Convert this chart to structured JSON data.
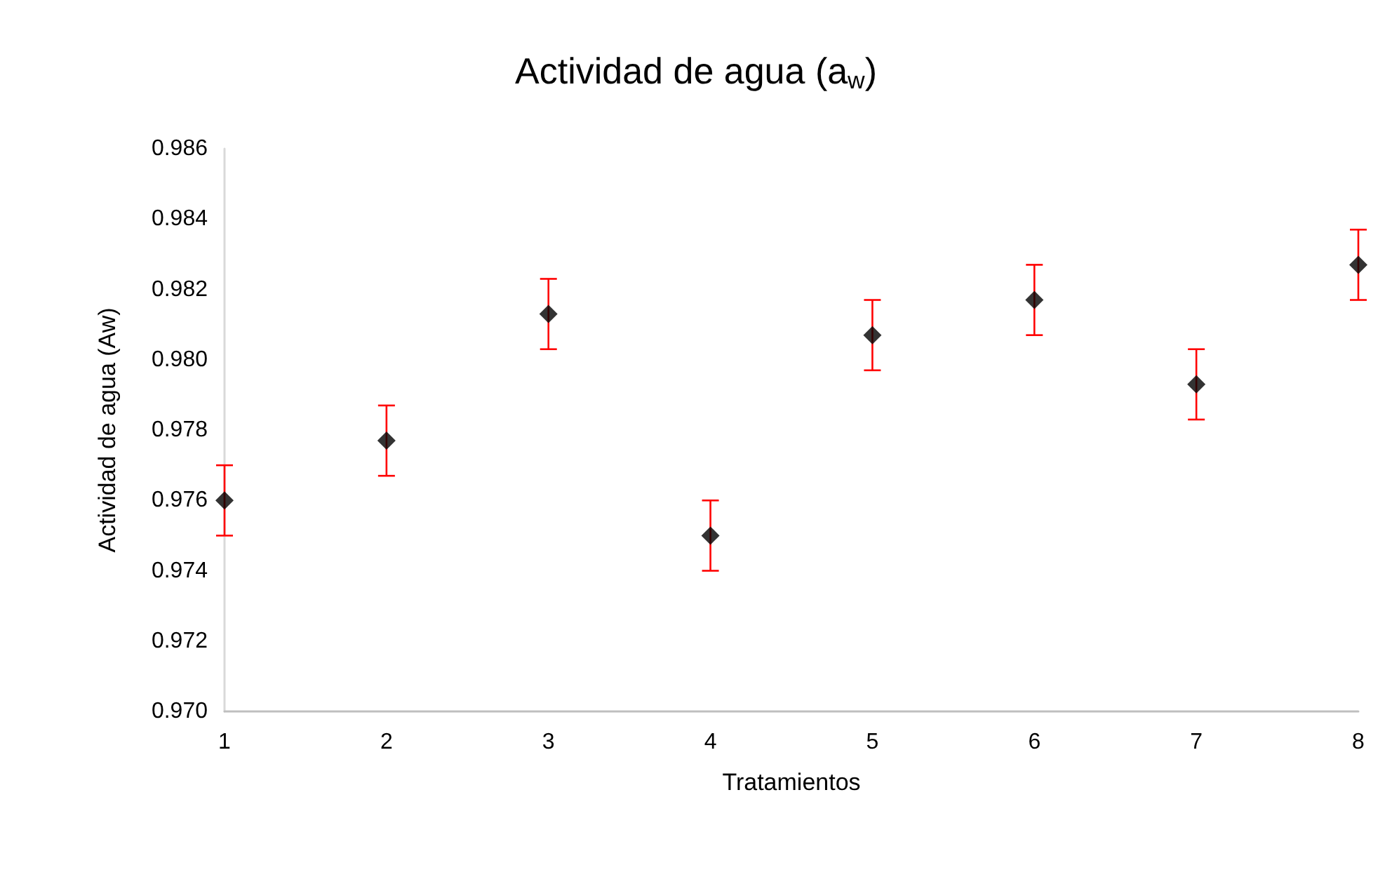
{
  "chart_data": {
    "type": "scatter",
    "title": "Actividad de agua (a$_{w}$)",
    "xlabel": "Tratamientos",
    "ylabel": "Actividad de agua (Aw)",
    "x": [
      1,
      2,
      3,
      4,
      5,
      6,
      7,
      8
    ],
    "series": [
      {
        "color": "#000000",
        "values": [
          0.976,
          0.9777,
          0.9813,
          0.975,
          0.9807,
          0.9817,
          0.9793,
          0.9827
        ],
        "errors": [
          0.001,
          0.001,
          0.001,
          0.001,
          0.001,
          0.001,
          0.001,
          0.001
        ]
      }
    ],
    "xlim": [
      1,
      8
    ],
    "xticks": [
      1,
      2,
      3,
      4,
      5,
      6,
      7,
      8
    ],
    "ylim": [
      0.97,
      0.986
    ],
    "yticks": [
      {
        "value": 0.97,
        "label": "0.970"
      },
      {
        "value": 0.972,
        "label": "0.972"
      },
      {
        "value": 0.974,
        "label": "0.974"
      },
      {
        "value": 0.976,
        "label": "0.976"
      },
      {
        "value": 0.978,
        "label": "0.978"
      },
      {
        "value": 0.98,
        "label": "0.980"
      },
      {
        "value": 0.982,
        "label": "0.982"
      },
      {
        "value": 0.984,
        "label": "0.984"
      },
      {
        "value": 0.986,
        "label": "0.986"
      }
    ],
    "grid": false,
    "marker": "diamond"
  }
}
